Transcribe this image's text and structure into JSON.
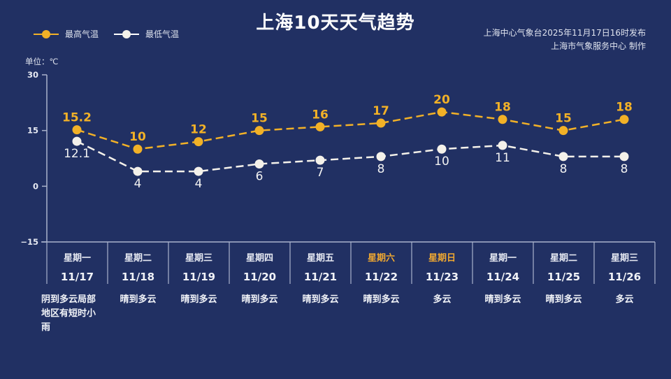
{
  "header": {
    "title": "上海10天天气趋势",
    "source_line1": "上海中心气象台2025年11月17日16时发布",
    "source_line2": "上海市气象服务中心  制作"
  },
  "legend": [
    {
      "label": "最高气温",
      "color": "#f2b127"
    },
    {
      "label": "最低气温",
      "color": "#f4f1ea"
    }
  ],
  "unit_label": "单位：℃",
  "days": [
    {
      "weekday": "星期一",
      "date": "11/17",
      "weather": "阴到多云局部地区有短时小雨",
      "weekend": false
    },
    {
      "weekday": "星期二",
      "date": "11/18",
      "weather": "晴到多云",
      "weekend": false
    },
    {
      "weekday": "星期三",
      "date": "11/19",
      "weather": "晴到多云",
      "weekend": false
    },
    {
      "weekday": "星期四",
      "date": "11/20",
      "weather": "晴到多云",
      "weekend": false
    },
    {
      "weekday": "星期五",
      "date": "11/21",
      "weather": "晴到多云",
      "weekend": false
    },
    {
      "weekday": "星期六",
      "date": "11/22",
      "weather": "晴到多云",
      "weekend": true
    },
    {
      "weekday": "星期日",
      "date": "11/23",
      "weather": "多云",
      "weekend": true
    },
    {
      "weekday": "星期一",
      "date": "11/24",
      "weather": "晴到多云",
      "weekend": false
    },
    {
      "weekday": "星期二",
      "date": "11/25",
      "weather": "晴到多云",
      "weekend": false
    },
    {
      "weekday": "星期三",
      "date": "11/26",
      "weather": "多云",
      "weekend": false
    }
  ],
  "colors": {
    "background": "#213063",
    "high": "#f2b127",
    "low": "#f4f1ea",
    "weekend_text": "#f0a830",
    "axis": "#aab3cc"
  },
  "chart_data": {
    "type": "line",
    "title": "上海10天天气趋势",
    "xlabel": "",
    "ylabel": "单位：℃",
    "categories": [
      "11/17",
      "11/18",
      "11/19",
      "11/20",
      "11/21",
      "11/22",
      "11/23",
      "11/24",
      "11/25",
      "11/26"
    ],
    "series": [
      {
        "name": "最高气温",
        "values": [
          15.2,
          10,
          12,
          15,
          16,
          17,
          20,
          18,
          15,
          18
        ],
        "color": "#f2b127",
        "line_style": "dashed"
      },
      {
        "name": "最低气温",
        "values": [
          12.1,
          4,
          4,
          6,
          7,
          8,
          10,
          11,
          8,
          8
        ],
        "color": "#f4f1ea",
        "line_style": "dashed"
      }
    ],
    "yticks": [
      30,
      15,
      0,
      -15
    ],
    "ylim": [
      -15,
      30
    ],
    "grid": false,
    "legend_position": "top-left"
  }
}
